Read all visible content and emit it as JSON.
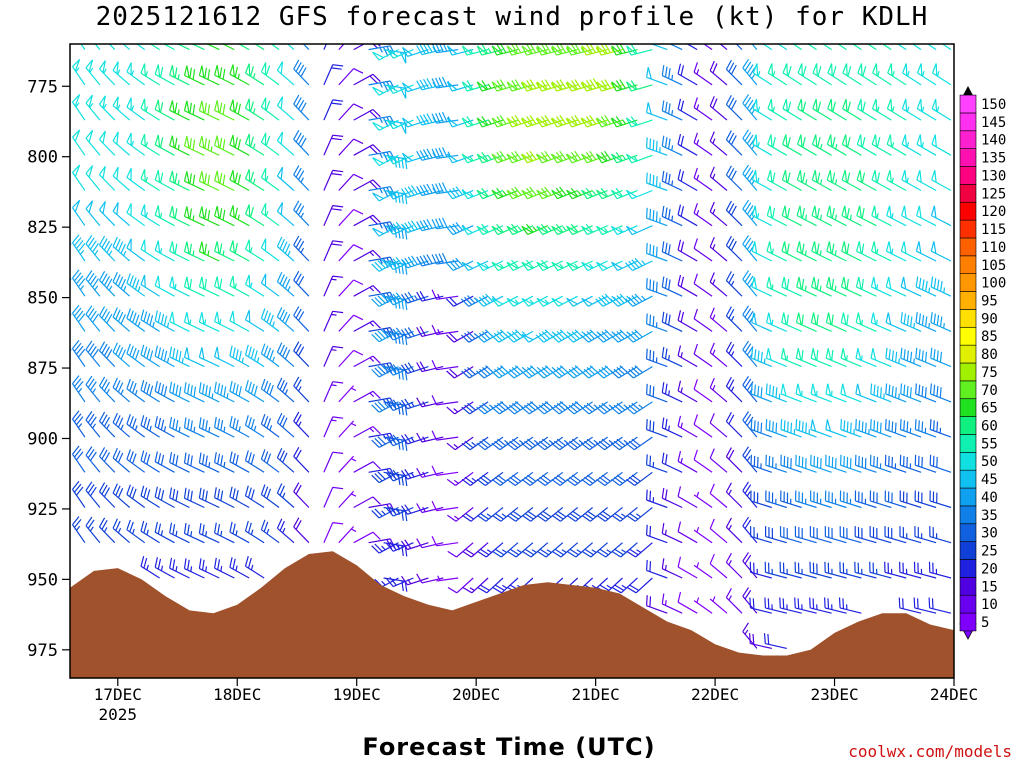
{
  "chart_data": {
    "type": "wind-barb-profile",
    "title": "2025121612 GFS forecast wind profile (kt) for KDLH",
    "xlabel": "Forecast Time (UTC)",
    "ylabel": "",
    "x_ticks": [
      "17DEC",
      "18DEC",
      "19DEC",
      "20DEC",
      "21DEC",
      "22DEC",
      "23DEC",
      "24DEC"
    ],
    "x_year_label": "2025",
    "x_range_days": [
      -0.4,
      7.0
    ],
    "y_ticks": [
      775,
      800,
      825,
      850,
      875,
      900,
      925,
      950,
      975
    ],
    "y_range_hpa": [
      760,
      985
    ],
    "colorbar": {
      "levels": [
        5,
        10,
        15,
        20,
        25,
        30,
        35,
        40,
        45,
        50,
        55,
        60,
        65,
        70,
        75,
        80,
        85,
        90,
        95,
        100,
        105,
        110,
        115,
        120,
        125,
        130,
        135,
        140,
        145,
        150
      ],
      "labels": [
        "150",
        "145",
        "140",
        "135",
        "130",
        "125",
        "120",
        "115",
        "110",
        "105",
        "100",
        "95",
        "90",
        "85",
        "80",
        "75",
        "70",
        "65",
        "60",
        "55",
        "50",
        "45",
        "40",
        "35",
        "30",
        "25",
        "20",
        "15",
        "10",
        "5"
      ],
      "colors": [
        "#8000ff",
        "#6a00f0",
        "#5000e0",
        "#2020e0",
        "#1040d8",
        "#1060e0",
        "#1080e8",
        "#10a0f0",
        "#10c0f0",
        "#10e0e0",
        "#10f0b0",
        "#10f080",
        "#20e020",
        "#60f020",
        "#a0f000",
        "#e0f000",
        "#ffff00",
        "#ffe000",
        "#ffb000",
        "#ff9800",
        "#ff8000",
        "#ff6000",
        "#ff3000",
        "#ff0000",
        "#f00040",
        "#ff0080",
        "#ff10b0",
        "#ff20d0",
        "#ff30f0",
        "#ff40ff"
      ]
    },
    "terrain_fill": "#a0522d",
    "surface_pressure": [
      [
        -0.4,
        953
      ],
      [
        -0.2,
        947
      ],
      [
        0.0,
        946
      ],
      [
        0.2,
        950
      ],
      [
        0.4,
        956
      ],
      [
        0.6,
        961
      ],
      [
        0.8,
        962
      ],
      [
        1.0,
        959
      ],
      [
        1.2,
        953
      ],
      [
        1.4,
        946
      ],
      [
        1.6,
        941
      ],
      [
        1.8,
        940
      ],
      [
        2.0,
        945
      ],
      [
        2.2,
        952
      ],
      [
        2.4,
        956
      ],
      [
        2.6,
        959
      ],
      [
        2.8,
        961
      ],
      [
        3.0,
        958
      ],
      [
        3.2,
        955
      ],
      [
        3.4,
        952
      ],
      [
        3.6,
        951
      ],
      [
        3.8,
        952
      ],
      [
        4.0,
        953
      ],
      [
        4.2,
        955
      ],
      [
        4.4,
        960
      ],
      [
        4.6,
        965
      ],
      [
        4.8,
        968
      ],
      [
        5.0,
        973
      ],
      [
        5.2,
        976
      ],
      [
        5.4,
        977
      ],
      [
        5.6,
        977
      ],
      [
        5.8,
        975
      ],
      [
        6.0,
        969
      ],
      [
        6.2,
        965
      ],
      [
        6.4,
        962
      ],
      [
        6.6,
        962
      ],
      [
        6.8,
        966
      ],
      [
        7.0,
        968
      ]
    ],
    "wind_field_note": "rows every 12.5 hPa from 762 to 975, columns every 3 h; per-cell speed (kt) and direction derived from the plotted barbs"
  }
}
